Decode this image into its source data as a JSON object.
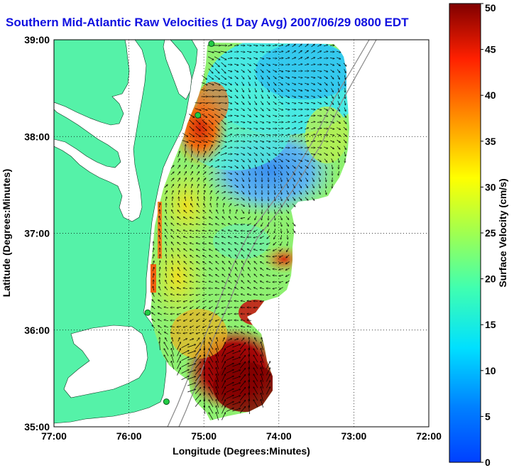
{
  "title": "Southern Mid-Atlantic Raw Velocities (1 Day Avg) 2007/06/29 0800 EDT",
  "map": {
    "xlabel": "Longitude (Degrees:Minutes)",
    "ylabel": "Latitude (Degrees:Minutes)",
    "x_ticks": [
      "77:00",
      "76:00",
      "75:00",
      "74:00",
      "73:00",
      "72:00"
    ],
    "y_ticks": [
      "39:00",
      "38:00",
      "37:00",
      "36:00",
      "35:00"
    ],
    "lon_range": [
      -77,
      -72
    ],
    "lat_range": [
      35,
      39
    ],
    "land_color": "#55f2a8",
    "water_color": "#ffffff",
    "grid": true
  },
  "colorbar": {
    "label": "Surface Velocity (cm/s)",
    "ticks": [
      "50",
      "45",
      "40",
      "35",
      "30",
      "25",
      "20",
      "15",
      "10",
      "5",
      "0"
    ],
    "range": [
      0,
      50
    ],
    "colormap": "jet"
  },
  "stations": [
    {
      "lon": -74.9,
      "lat": 38.96
    },
    {
      "lon": -75.08,
      "lat": 38.22
    },
    {
      "lon": -75.75,
      "lat": 36.18
    },
    {
      "lon": -75.5,
      "lat": 35.26
    }
  ]
}
